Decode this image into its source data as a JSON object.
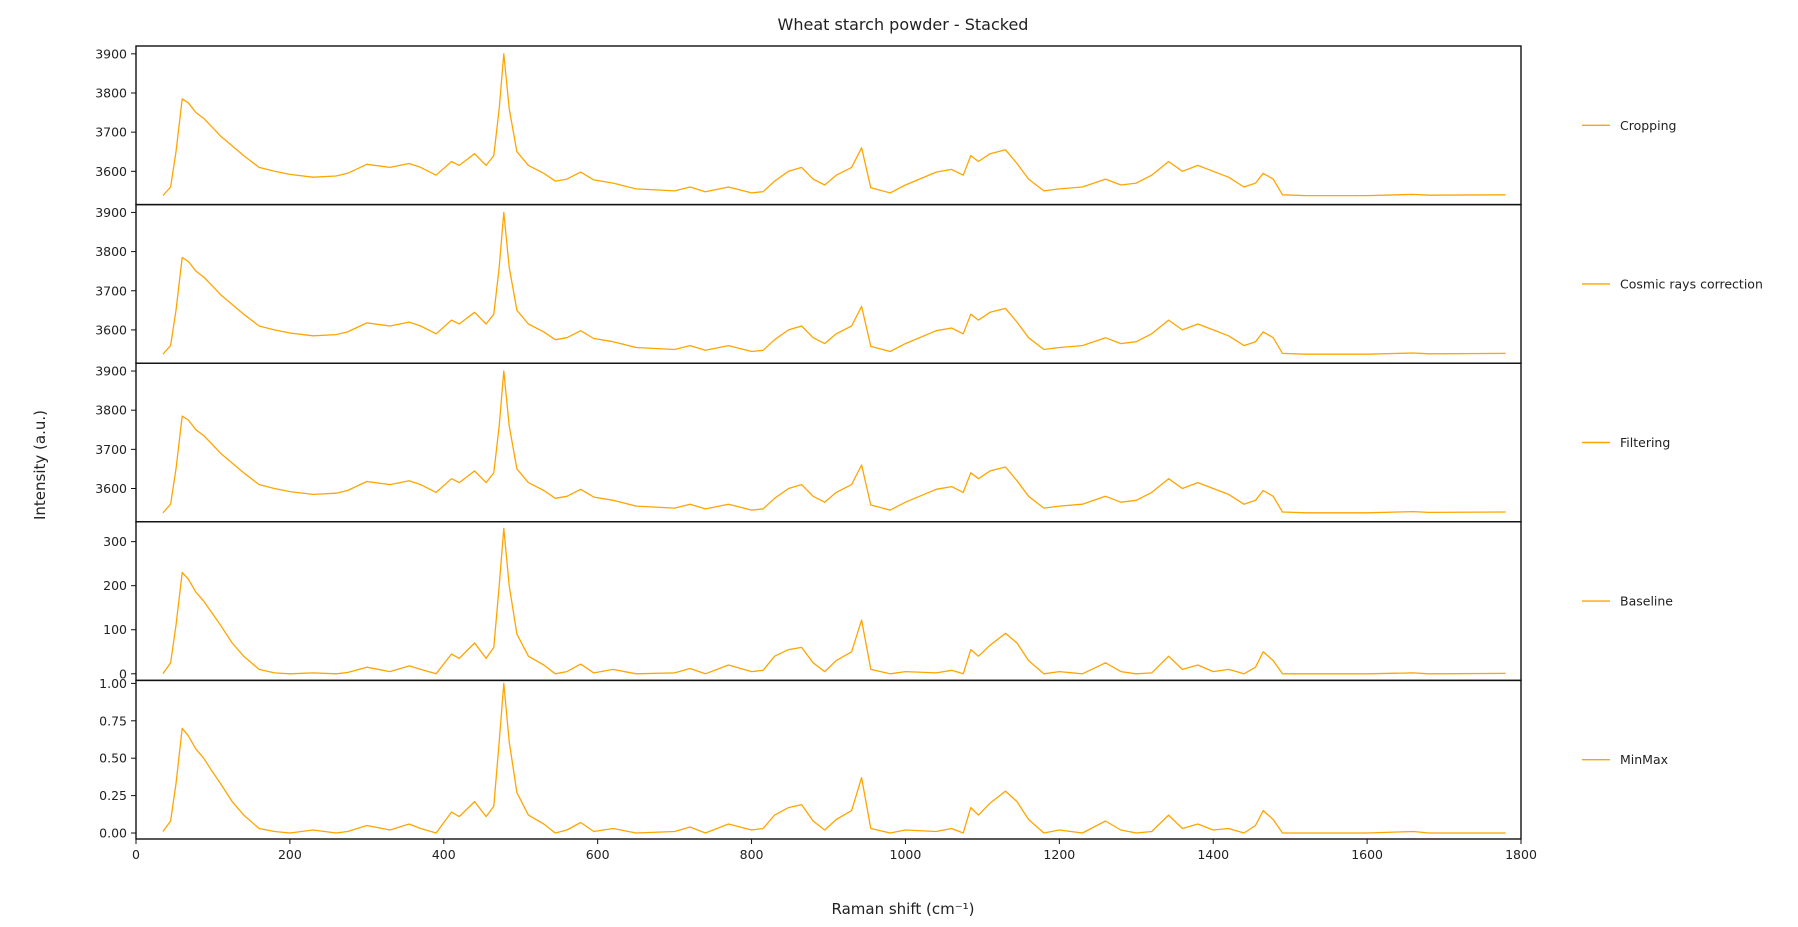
{
  "chart_data": {
    "type": "line",
    "title": "Wheat starch powder - Stacked",
    "xlabel": "Raman shift (cm⁻¹)",
    "ylabel": "Intensity (a.u.)",
    "xlim": [
      0,
      1800
    ],
    "xticks": [
      0,
      200,
      400,
      600,
      800,
      1000,
      1200,
      1400,
      1600,
      1800
    ],
    "line_color": "#ffa500",
    "legend_position": "right of each panel",
    "grid": false,
    "panels": [
      {
        "name": "Cropping",
        "ylim": [
          3515,
          3920
        ],
        "yticks": [
          3600,
          3700,
          3800,
          3900
        ],
        "ytick_labels": [
          "3600",
          "3700",
          "3800",
          "3900"
        ],
        "series": {
          "name": "Cropping",
          "x": [
            35,
            45,
            52,
            60,
            68,
            78,
            88,
            98,
            110,
            125,
            140,
            160,
            180,
            200,
            230,
            260,
            275,
            300,
            330,
            355,
            370,
            390,
            410,
            420,
            440,
            455,
            465,
            472,
            478,
            485,
            495,
            510,
            530,
            545,
            560,
            578,
            595,
            620,
            650,
            700,
            720,
            740,
            770,
            800,
            815,
            830,
            848,
            865,
            880,
            895,
            910,
            930,
            943,
            955,
            980,
            1000,
            1040,
            1060,
            1075,
            1085,
            1095,
            1110,
            1130,
            1145,
            1160,
            1180,
            1200,
            1230,
            1260,
            1280,
            1300,
            1320,
            1342,
            1360,
            1380,
            1400,
            1420,
            1440,
            1455,
            1465,
            1478,
            1490,
            1520,
            1600,
            1660,
            1680,
            1780
          ],
          "y": [
            3538,
            3560,
            3650,
            3785,
            3775,
            3750,
            3735,
            3715,
            3690,
            3665,
            3640,
            3610,
            3600,
            3592,
            3585,
            3588,
            3595,
            3618,
            3610,
            3620,
            3610,
            3590,
            3625,
            3615,
            3645,
            3615,
            3640,
            3760,
            3900,
            3760,
            3650,
            3615,
            3595,
            3575,
            3580,
            3598,
            3578,
            3570,
            3555,
            3550,
            3560,
            3548,
            3560,
            3545,
            3548,
            3575,
            3600,
            3610,
            3580,
            3565,
            3590,
            3610,
            3660,
            3558,
            3545,
            3565,
            3598,
            3605,
            3590,
            3640,
            3625,
            3645,
            3655,
            3620,
            3580,
            3550,
            3555,
            3560,
            3580,
            3565,
            3570,
            3590,
            3625,
            3600,
            3615,
            3600,
            3585,
            3560,
            3570,
            3595,
            3580,
            3540,
            3538,
            3538,
            3541,
            3539,
            3540
          ]
        }
      },
      {
        "name": "Cosmic rays correction",
        "ylim": [
          3515,
          3920
        ],
        "yticks": [
          3600,
          3700,
          3800,
          3900
        ],
        "ytick_labels": [
          "3600",
          "3700",
          "3800",
          "3900"
        ],
        "series": {
          "name": "Cosmic rays correction",
          "x": [
            35,
            45,
            52,
            60,
            68,
            78,
            88,
            98,
            110,
            125,
            140,
            160,
            180,
            200,
            230,
            260,
            275,
            300,
            330,
            355,
            370,
            390,
            410,
            420,
            440,
            455,
            465,
            472,
            478,
            485,
            495,
            510,
            530,
            545,
            560,
            578,
            595,
            620,
            650,
            700,
            720,
            740,
            770,
            800,
            815,
            830,
            848,
            865,
            880,
            895,
            910,
            930,
            943,
            955,
            980,
            1000,
            1040,
            1060,
            1075,
            1085,
            1095,
            1110,
            1130,
            1145,
            1160,
            1180,
            1200,
            1230,
            1260,
            1280,
            1300,
            1320,
            1342,
            1360,
            1380,
            1400,
            1420,
            1440,
            1455,
            1465,
            1478,
            1490,
            1520,
            1600,
            1660,
            1680,
            1780
          ],
          "y": [
            3538,
            3560,
            3650,
            3785,
            3775,
            3750,
            3735,
            3715,
            3690,
            3665,
            3640,
            3610,
            3600,
            3592,
            3585,
            3588,
            3595,
            3618,
            3610,
            3620,
            3610,
            3590,
            3625,
            3615,
            3645,
            3615,
            3640,
            3760,
            3900,
            3760,
            3650,
            3615,
            3595,
            3575,
            3580,
            3598,
            3578,
            3570,
            3555,
            3550,
            3560,
            3548,
            3560,
            3545,
            3548,
            3575,
            3600,
            3610,
            3580,
            3565,
            3590,
            3610,
            3660,
            3558,
            3545,
            3565,
            3598,
            3605,
            3590,
            3640,
            3625,
            3645,
            3655,
            3620,
            3580,
            3550,
            3555,
            3560,
            3580,
            3565,
            3570,
            3590,
            3625,
            3600,
            3615,
            3600,
            3585,
            3560,
            3570,
            3595,
            3580,
            3540,
            3538,
            3538,
            3541,
            3539,
            3540
          ]
        }
      },
      {
        "name": "Filtering",
        "ylim": [
          3515,
          3920
        ],
        "yticks": [
          3600,
          3700,
          3800,
          3900
        ],
        "ytick_labels": [
          "3600",
          "3700",
          "3800",
          "3900"
        ],
        "series": {
          "name": "Filtering",
          "x": [
            35,
            45,
            52,
            60,
            68,
            78,
            88,
            98,
            110,
            125,
            140,
            160,
            180,
            200,
            230,
            260,
            275,
            300,
            330,
            355,
            370,
            390,
            410,
            420,
            440,
            455,
            465,
            472,
            478,
            485,
            495,
            510,
            530,
            545,
            560,
            578,
            595,
            620,
            650,
            700,
            720,
            740,
            770,
            800,
            815,
            830,
            848,
            865,
            880,
            895,
            910,
            930,
            943,
            955,
            980,
            1000,
            1040,
            1060,
            1075,
            1085,
            1095,
            1110,
            1130,
            1145,
            1160,
            1180,
            1200,
            1230,
            1260,
            1280,
            1300,
            1320,
            1342,
            1360,
            1380,
            1400,
            1420,
            1440,
            1455,
            1465,
            1478,
            1490,
            1520,
            1600,
            1660,
            1680,
            1780
          ],
          "y": [
            3538,
            3560,
            3650,
            3785,
            3775,
            3750,
            3735,
            3715,
            3690,
            3665,
            3640,
            3610,
            3600,
            3592,
            3585,
            3588,
            3595,
            3618,
            3610,
            3620,
            3610,
            3590,
            3625,
            3615,
            3645,
            3615,
            3640,
            3760,
            3900,
            3760,
            3650,
            3615,
            3595,
            3575,
            3580,
            3598,
            3578,
            3570,
            3555,
            3550,
            3560,
            3548,
            3560,
            3545,
            3548,
            3575,
            3600,
            3610,
            3580,
            3565,
            3590,
            3610,
            3660,
            3558,
            3545,
            3565,
            3598,
            3605,
            3590,
            3640,
            3625,
            3645,
            3655,
            3620,
            3580,
            3550,
            3555,
            3560,
            3580,
            3565,
            3570,
            3590,
            3625,
            3600,
            3615,
            3600,
            3585,
            3560,
            3570,
            3595,
            3580,
            3540,
            3538,
            3538,
            3541,
            3539,
            3540
          ]
        }
      },
      {
        "name": "Baseline",
        "ylim": [
          -15,
          345
        ],
        "yticks": [
          0,
          100,
          200,
          300
        ],
        "ytick_labels": [
          "0",
          "100",
          "200",
          "300"
        ],
        "series": {
          "name": "Baseline",
          "x": [
            35,
            45,
            52,
            60,
            68,
            78,
            88,
            98,
            110,
            125,
            140,
            160,
            180,
            200,
            230,
            260,
            275,
            300,
            330,
            355,
            370,
            390,
            410,
            420,
            440,
            455,
            465,
            472,
            478,
            485,
            495,
            510,
            530,
            545,
            560,
            578,
            595,
            620,
            650,
            700,
            720,
            740,
            770,
            800,
            815,
            830,
            848,
            865,
            880,
            895,
            910,
            930,
            943,
            955,
            980,
            1000,
            1040,
            1060,
            1075,
            1085,
            1095,
            1110,
            1130,
            1145,
            1160,
            1180,
            1200,
            1230,
            1260,
            1280,
            1300,
            1320,
            1342,
            1360,
            1380,
            1400,
            1420,
            1440,
            1455,
            1465,
            1478,
            1490,
            1520,
            1600,
            1660,
            1680,
            1780
          ],
          "y": [
            0,
            25,
            110,
            230,
            215,
            185,
            165,
            140,
            110,
            70,
            40,
            10,
            2,
            0,
            2,
            0,
            3,
            15,
            5,
            18,
            10,
            0,
            45,
            35,
            70,
            35,
            60,
            200,
            330,
            200,
            90,
            40,
            20,
            0,
            5,
            22,
            2,
            10,
            0,
            2,
            12,
            0,
            20,
            5,
            8,
            40,
            55,
            60,
            25,
            5,
            30,
            50,
            122,
            10,
            0,
            5,
            2,
            8,
            0,
            55,
            40,
            65,
            92,
            70,
            30,
            0,
            5,
            0,
            25,
            5,
            0,
            2,
            40,
            10,
            20,
            5,
            10,
            0,
            15,
            50,
            30,
            0,
            0,
            0,
            2,
            0,
            1
          ]
        }
      },
      {
        "name": "MinMax",
        "ylim": [
          -0.04,
          1.02
        ],
        "yticks": [
          0.0,
          0.25,
          0.5,
          0.75,
          1.0
        ],
        "ytick_labels": [
          "0.00",
          "0.25",
          "0.50",
          "0.75",
          "1.00"
        ],
        "series": {
          "name": "MinMax",
          "x": [
            35,
            45,
            52,
            60,
            68,
            78,
            88,
            98,
            110,
            125,
            140,
            160,
            180,
            200,
            230,
            260,
            275,
            300,
            330,
            355,
            370,
            390,
            410,
            420,
            440,
            455,
            465,
            472,
            478,
            485,
            495,
            510,
            530,
            545,
            560,
            578,
            595,
            620,
            650,
            700,
            720,
            740,
            770,
            800,
            815,
            830,
            848,
            865,
            880,
            895,
            910,
            930,
            943,
            955,
            980,
            1000,
            1040,
            1060,
            1075,
            1085,
            1095,
            1110,
            1130,
            1145,
            1160,
            1180,
            1200,
            1230,
            1260,
            1280,
            1300,
            1320,
            1342,
            1360,
            1380,
            1400,
            1420,
            1440,
            1455,
            1465,
            1478,
            1490,
            1520,
            1600,
            1660,
            1680,
            1780
          ],
          "y": [
            0.01,
            0.08,
            0.33,
            0.7,
            0.65,
            0.56,
            0.5,
            0.42,
            0.33,
            0.21,
            0.12,
            0.03,
            0.01,
            0.0,
            0.02,
            0.0,
            0.01,
            0.05,
            0.02,
            0.06,
            0.03,
            0.0,
            0.14,
            0.11,
            0.21,
            0.11,
            0.18,
            0.61,
            1.0,
            0.61,
            0.27,
            0.12,
            0.06,
            0.0,
            0.02,
            0.07,
            0.01,
            0.03,
            0.0,
            0.01,
            0.04,
            0.0,
            0.06,
            0.02,
            0.03,
            0.12,
            0.17,
            0.19,
            0.08,
            0.02,
            0.09,
            0.15,
            0.37,
            0.03,
            0.0,
            0.02,
            0.01,
            0.03,
            0.0,
            0.17,
            0.12,
            0.2,
            0.28,
            0.21,
            0.09,
            0.0,
            0.02,
            0.0,
            0.08,
            0.02,
            0.0,
            0.01,
            0.12,
            0.03,
            0.06,
            0.02,
            0.03,
            0.0,
            0.05,
            0.15,
            0.09,
            0.0,
            0.0,
            0.0,
            0.01,
            0.0,
            0.0
          ]
        }
      }
    ]
  }
}
